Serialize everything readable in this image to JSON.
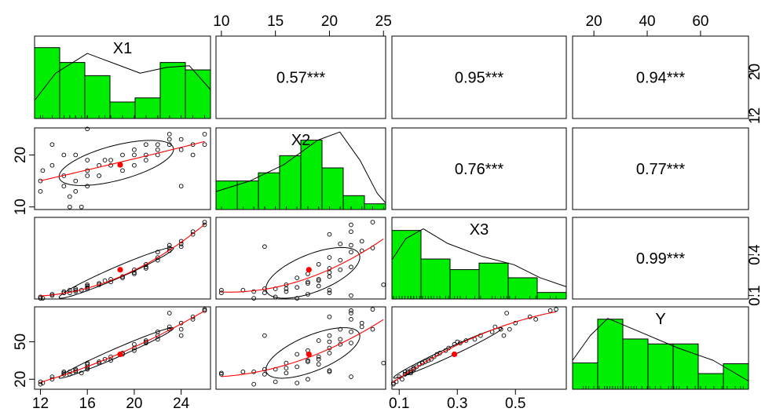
{
  "chart_data": {
    "type": "scatter",
    "variables": [
      "X1",
      "X2",
      "X3",
      "Y"
    ],
    "correlations": [
      {
        "row": "X1",
        "col": "X2",
        "label": "0.57***"
      },
      {
        "row": "X1",
        "col": "X3",
        "label": "0.95***"
      },
      {
        "row": "X1",
        "col": "Y",
        "label": "0.94***"
      },
      {
        "row": "X2",
        "col": "X3",
        "label": "0.76***"
      },
      {
        "row": "X2",
        "col": "Y",
        "label": "0.77***"
      },
      {
        "row": "X3",
        "col": "Y",
        "label": "0.99***"
      }
    ],
    "ranges": {
      "X1": [
        11.5,
        26.5
      ],
      "X2": [
        9.5,
        25.2
      ],
      "X3": [
        0.075,
        0.675
      ],
      "Y": [
        12,
        78
      ]
    },
    "axis_ticks": {
      "top": [
        {
          "var": "X2",
          "values": [
            10,
            15,
            20,
            25
          ],
          "labels": [
            "10",
            "15",
            "20",
            "25"
          ]
        },
        {
          "var": "Y",
          "values": [
            20,
            40,
            60
          ],
          "labels": [
            "20",
            "40",
            "60"
          ]
        }
      ],
      "bottom": [
        {
          "var": "X1",
          "values": [
            12,
            16,
            20,
            24
          ],
          "labels": [
            "12",
            "16",
            "20",
            "24"
          ]
        },
        {
          "var": "X3",
          "values": [
            0.1,
            0.3,
            0.5
          ],
          "labels": [
            "0.1",
            "0.3",
            "0.5"
          ]
        }
      ],
      "left": [
        {
          "var": "X2",
          "values": [
            10,
            20
          ],
          "labels": [
            "10",
            "20"
          ]
        },
        {
          "var": "Y",
          "values": [
            20,
            50
          ],
          "labels": [
            "20",
            "50"
          ]
        }
      ],
      "right": [
        {
          "var": "X1",
          "values": [
            12,
            20
          ],
          "labels": [
            "12",
            "20"
          ]
        },
        {
          "var": "X3",
          "values": [
            0.1,
            0.4
          ],
          "labels": [
            "0.1",
            "0.4"
          ]
        }
      ]
    },
    "histograms": {
      "X1": [
        0.86,
        0.68,
        0.52,
        0.2,
        0.25,
        0.68,
        0.59
      ],
      "X2": [
        0.35,
        0.35,
        0.45,
        0.66,
        0.85,
        0.51,
        0.17,
        0.07
      ],
      "X3": [
        0.84,
        0.49,
        0.36,
        0.44,
        0.26,
        0.08
      ],
      "Y": [
        0.32,
        0.85,
        0.61,
        0.55,
        0.55,
        0.19,
        0.31
      ]
    },
    "density_curves": {
      "X1": [
        [
          0.0,
          0.22
        ],
        [
          0.12,
          0.55
        ],
        [
          0.3,
          0.79
        ],
        [
          0.45,
          0.67
        ],
        [
          0.6,
          0.55
        ],
        [
          0.75,
          0.62
        ],
        [
          0.88,
          0.64
        ],
        [
          1.0,
          0.35
        ]
      ],
      "X2": [
        [
          0.0,
          0.22
        ],
        [
          0.2,
          0.35
        ],
        [
          0.4,
          0.55
        ],
        [
          0.6,
          0.85
        ],
        [
          0.73,
          0.95
        ],
        [
          0.85,
          0.6
        ],
        [
          0.95,
          0.2
        ],
        [
          1.0,
          0.08
        ]
      ],
      "X3": [
        [
          0.0,
          0.48
        ],
        [
          0.08,
          0.74
        ],
        [
          0.18,
          0.86
        ],
        [
          0.32,
          0.68
        ],
        [
          0.52,
          0.52
        ],
        [
          0.7,
          0.42
        ],
        [
          0.85,
          0.26
        ],
        [
          1.0,
          0.15
        ]
      ],
      "Y": [
        [
          0.0,
          0.35
        ],
        [
          0.1,
          0.65
        ],
        [
          0.2,
          0.86
        ],
        [
          0.4,
          0.68
        ],
        [
          0.6,
          0.5
        ],
        [
          0.8,
          0.35
        ],
        [
          1.0,
          0.1
        ]
      ]
    },
    "observations": [
      {
        "X1": 12,
        "X2": 13,
        "X3": 0.08,
        "Y": 16
      },
      {
        "X1": 12,
        "X2": 15,
        "X3": 0.09,
        "Y": 18
      },
      {
        "X1": 12.2,
        "X2": 17,
        "X3": 0.08,
        "Y": 17
      },
      {
        "X1": 13,
        "X2": 22,
        "X3": 0.1,
        "Y": 22
      },
      {
        "X1": 13,
        "X2": 18,
        "X3": 0.11,
        "Y": 20
      },
      {
        "X1": 14,
        "X2": 14,
        "X3": 0.12,
        "Y": 24
      },
      {
        "X1": 14,
        "X2": 16,
        "X3": 0.13,
        "Y": 25
      },
      {
        "X1": 14,
        "X2": 20,
        "X3": 0.12,
        "Y": 26
      },
      {
        "X1": 14.5,
        "X2": 12,
        "X3": 0.14,
        "Y": 26
      },
      {
        "X1": 14.5,
        "X2": 10,
        "X3": 0.12,
        "Y": 24
      },
      {
        "X1": 15,
        "X2": 15,
        "X3": 0.15,
        "Y": 28
      },
      {
        "X1": 15,
        "X2": 20,
        "X3": 0.14,
        "Y": 27
      },
      {
        "X1": 15,
        "X2": 13,
        "X3": 0.13,
        "Y": 26
      },
      {
        "X1": 15.5,
        "X2": 10,
        "X3": 0.14,
        "Y": 25
      },
      {
        "X1": 16,
        "X2": 17,
        "X3": 0.16,
        "Y": 30
      },
      {
        "X1": 16,
        "X2": 16,
        "X3": 0.15,
        "Y": 29
      },
      {
        "X1": 16,
        "X2": 19,
        "X3": 0.17,
        "Y": 32
      },
      {
        "X1": 16,
        "X2": 25,
        "X3": 0.18,
        "Y": 33
      },
      {
        "X1": 16,
        "X2": 14,
        "X3": 0.15,
        "Y": 28
      },
      {
        "X1": 17,
        "X2": 18,
        "X3": 0.19,
        "Y": 34
      },
      {
        "X1": 17,
        "X2": 16,
        "X3": 0.18,
        "Y": 33
      },
      {
        "X1": 17.5,
        "X2": 19,
        "X3": 0.21,
        "Y": 36
      },
      {
        "X1": 18,
        "X2": 19,
        "X3": 0.22,
        "Y": 38
      },
      {
        "X1": 18,
        "X2": 18,
        "X3": 0.2,
        "Y": 35
      },
      {
        "X1": 19,
        "X2": 17,
        "X3": 0.23,
        "Y": 40
      },
      {
        "X1": 19,
        "X2": 20,
        "X3": 0.24,
        "Y": 41
      },
      {
        "X1": 20,
        "X2": 18,
        "X3": 0.26,
        "Y": 43
      },
      {
        "X1": 20,
        "X2": 20,
        "X3": 0.27,
        "Y": 45
      },
      {
        "X1": 20,
        "X2": 21,
        "X3": 0.29,
        "Y": 48
      },
      {
        "X1": 21,
        "X2": 20,
        "X3": 0.3,
        "Y": 50
      },
      {
        "X1": 21,
        "X2": 22,
        "X3": 0.31,
        "Y": 49
      },
      {
        "X1": 21,
        "X2": 19,
        "X3": 0.33,
        "Y": 51
      },
      {
        "X1": 22,
        "X2": 21,
        "X3": 0.36,
        "Y": 52
      },
      {
        "X1": 22,
        "X2": 20,
        "X3": 0.38,
        "Y": 55
      },
      {
        "X1": 22,
        "X2": 22,
        "X3": 0.42,
        "Y": 58
      },
      {
        "X1": 23,
        "X2": 24,
        "X3": 0.45,
        "Y": 60
      },
      {
        "X1": 23,
        "X2": 23,
        "X3": 0.43,
        "Y": 62
      },
      {
        "X1": 23,
        "X2": 22,
        "X3": 0.47,
        "Y": 73
      },
      {
        "X1": 24,
        "X2": 23,
        "X3": 0.5,
        "Y": 65
      },
      {
        "X1": 24,
        "X2": 14,
        "X3": 0.46,
        "Y": 55
      },
      {
        "X1": 24,
        "X2": 21,
        "X3": 0.48,
        "Y": 60
      },
      {
        "X1": 25,
        "X2": 20,
        "X3": 0.55,
        "Y": 70
      },
      {
        "X1": 25,
        "X2": 22,
        "X3": 0.57,
        "Y": 68
      },
      {
        "X1": 26,
        "X2": 22,
        "X3": 0.62,
        "Y": 75
      },
      {
        "X1": 26,
        "X2": 24,
        "X3": 0.64,
        "Y": 76
      }
    ],
    "means": {
      "X1": 18.8,
      "X2": 18.1,
      "X3": 0.29,
      "Y": 40
    },
    "colors": {
      "histogram_fill": "#00ee00",
      "points": "#000000",
      "mean_point": "#ff0000",
      "smooth_line": "#ff0000",
      "ellipse": "#000000",
      "density": "#000000",
      "frame": "#000000"
    },
    "title": "",
    "xlabel": "",
    "ylabel": ""
  }
}
